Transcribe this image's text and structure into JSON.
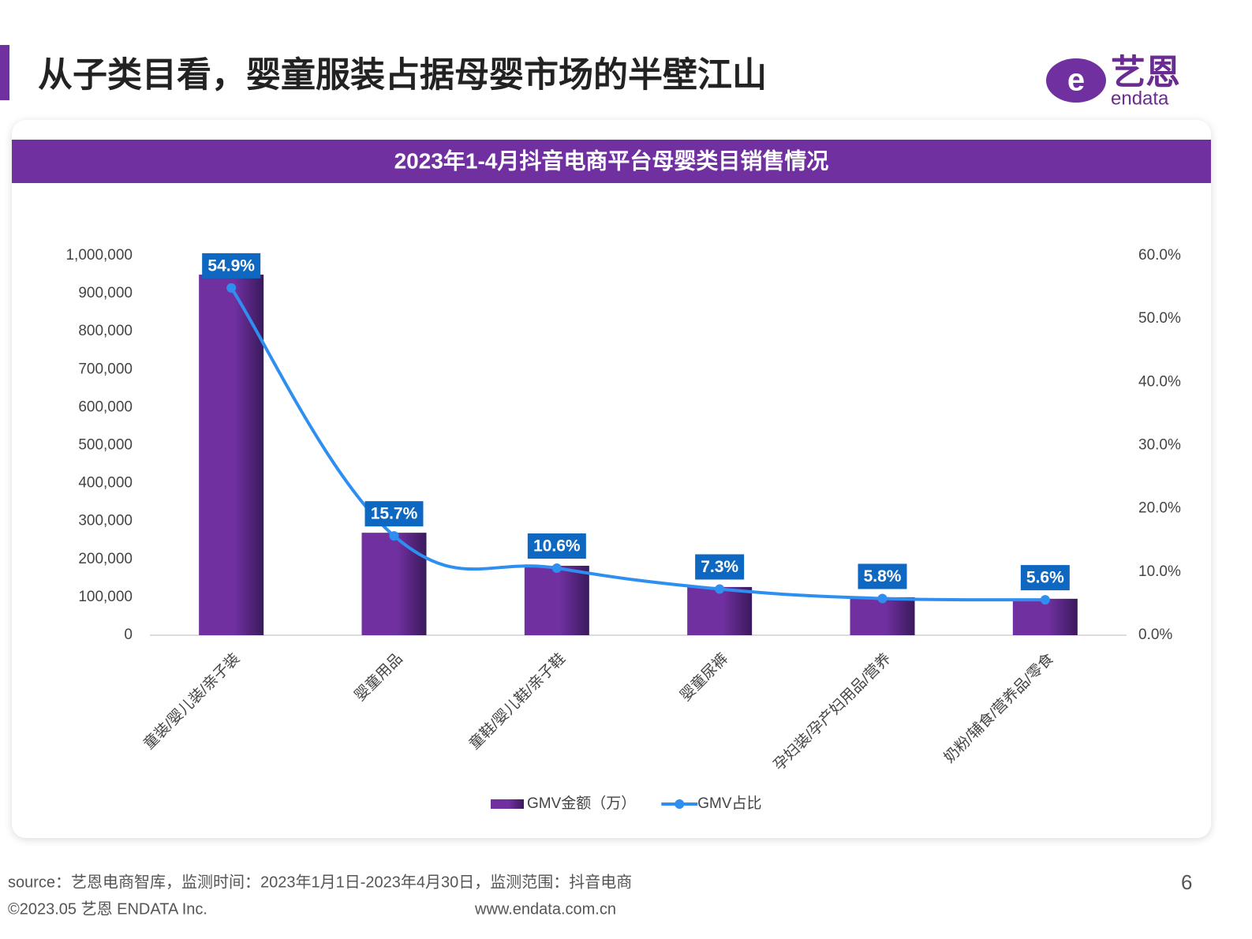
{
  "header": {
    "title": "从子类目看，婴童服装占据母婴市场的半壁江山"
  },
  "logo": {
    "name": "艺恩",
    "sub": "endata"
  },
  "chart_data": {
    "type": "bar",
    "title": "2023年1-4月抖音电商平台母婴类目销售情况",
    "categories": [
      "童装/婴儿装/亲子装",
      "婴童用品",
      "童鞋/婴儿鞋/亲子鞋",
      "婴童尿裤",
      "孕妇装/孕产妇用品/营养",
      "奶粉/辅食/营养品/零食"
    ],
    "series": [
      {
        "name": "GMV金额（万）",
        "type": "bar",
        "color": "#7030a0",
        "values": [
          950000,
          270000,
          183000,
          127000,
          100000,
          96000
        ]
      },
      {
        "name": "GMV占比",
        "type": "line",
        "axis": "y2",
        "color": "#2f8ff0",
        "values": [
          54.9,
          15.7,
          10.6,
          7.3,
          5.8,
          5.6
        ],
        "value_labels": [
          "54.9%",
          "15.7%",
          "10.6%",
          "7.3%",
          "5.8%",
          "5.6%"
        ]
      }
    ],
    "ylim": [
      0,
      1000000
    ],
    "yticks": [
      0,
      {
        "value": 100000,
        "label": "100,000"
      },
      {
        "value": 200000,
        "label": "200,000"
      },
      {
        "value": 300000,
        "label": "300,000"
      },
      {
        "value": 400000,
        "label": "400,000"
      },
      {
        "value": 500000,
        "label": "500,000"
      },
      {
        "value": 600000,
        "label": "600,000"
      },
      {
        "value": 700000,
        "label": "700,000"
      },
      {
        "value": 800000,
        "label": "800,000"
      },
      {
        "value": 900000,
        "label": "900,000"
      },
      {
        "value": 1000000,
        "label": "1,000,000"
      }
    ],
    "y2lim": [
      0,
      60
    ],
    "y2ticks": [
      {
        "value": 0,
        "label": "0.0%"
      },
      {
        "value": 10,
        "label": "10.0%"
      },
      {
        "value": 20,
        "label": "20.0%"
      },
      {
        "value": 30,
        "label": "30.0%"
      },
      {
        "value": 40,
        "label": "40.0%"
      },
      {
        "value": 50,
        "label": "50.0%"
      },
      {
        "value": 60,
        "label": "60.0%"
      }
    ],
    "legend": "bottom"
  },
  "footer": {
    "source": "source：艺恩电商智库，监测时间：2023年1月1日-2023年4月30日，监测范围：抖音电商",
    "copyright": "©2023.05 艺恩 ENDATA Inc.",
    "url": "www.endata.com.cn",
    "page": "6"
  }
}
